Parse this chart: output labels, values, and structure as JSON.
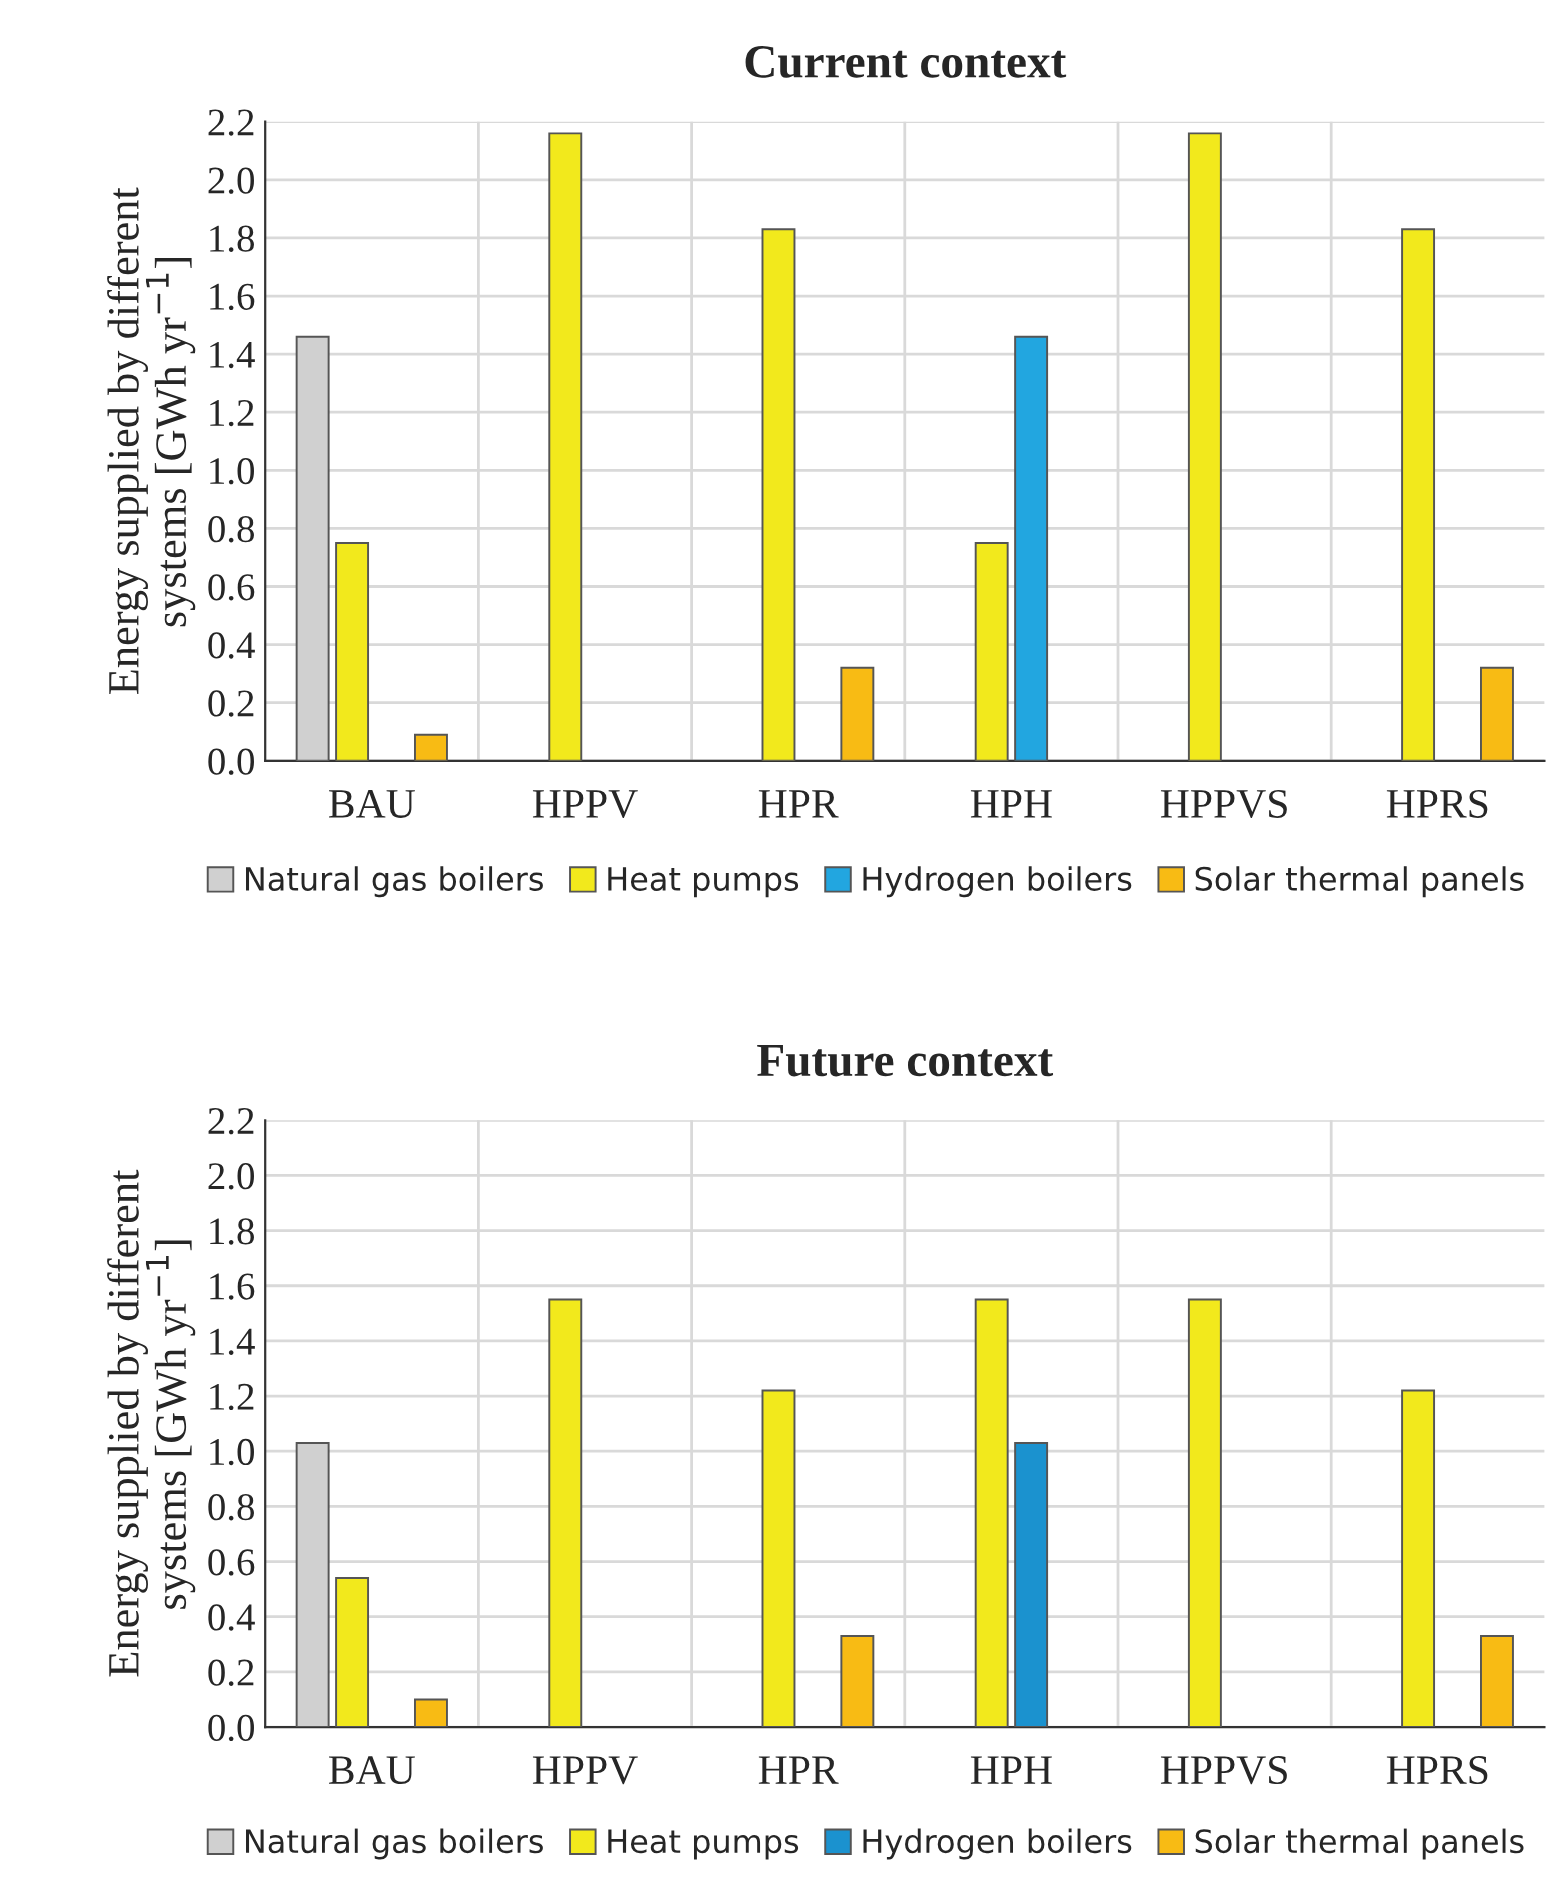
{
  "chart_data": [
    {
      "type": "bar",
      "title": "Current context",
      "ylabel": "Energy supplied by different\nsystems [GWh yr$^{−1}$]",
      "categories": [
        "BAU",
        "HPPV",
        "HPR",
        "HPH",
        "HPPVS",
        "HPRS"
      ],
      "series": [
        {
          "name": "Natural gas boilers",
          "color": "#d0d0d0",
          "values": [
            1.46,
            null,
            null,
            null,
            null,
            null
          ]
        },
        {
          "name": "Heat pumps",
          "color": "#f2e91c",
          "values": [
            0.75,
            2.16,
            1.83,
            0.75,
            2.16,
            1.83
          ]
        },
        {
          "name": "Hydrogen boilers",
          "color": "#22a6e0",
          "values": [
            null,
            null,
            null,
            1.46,
            null,
            null
          ]
        },
        {
          "name": "Solar thermal panels",
          "color": "#f8bb14",
          "values": [
            0.09,
            null,
            0.32,
            null,
            null,
            0.32
          ]
        }
      ],
      "ylim": [
        0,
        2.2
      ],
      "yticks": [
        {
          "value": 0,
          "label": "0.0"
        },
        {
          "value": 0.2,
          "label": "0.2"
        },
        {
          "value": 0.4,
          "label": "0.4"
        },
        {
          "value": 0.6,
          "label": "0.6"
        },
        {
          "value": 0.8,
          "label": "0.8"
        },
        {
          "value": 1,
          "label": "1.0"
        },
        {
          "value": 1.2,
          "label": "1.2"
        },
        {
          "value": 1.4,
          "label": "1.4"
        },
        {
          "value": 1.6,
          "label": "1.6"
        },
        {
          "value": 1.8,
          "label": "1.8"
        },
        {
          "value": 2,
          "label": "2.0"
        },
        {
          "value": 2.2,
          "label": "2.2"
        }
      ],
      "grid": true,
      "legend": "bottom"
    },
    {
      "type": "bar",
      "title": "Future context",
      "ylabel": "Energy supplied by different\nsystems [GWh yr$^{−1}$]",
      "categories": [
        "BAU",
        "HPPV",
        "HPR",
        "HPH",
        "HPPVS",
        "HPRS"
      ],
      "series": [
        {
          "name": "Natural gas boilers",
          "color": "#d0d0d0",
          "values": [
            1.03,
            null,
            null,
            null,
            null,
            null
          ]
        },
        {
          "name": "Heat pumps",
          "color": "#f2e91c",
          "values": [
            0.54,
            1.55,
            1.22,
            1.55,
            1.55,
            1.22
          ]
        },
        {
          "name": "Hydrogen boilers",
          "color": "#1b92cf",
          "values": [
            null,
            null,
            null,
            1.03,
            null,
            null
          ]
        },
        {
          "name": "Solar thermal panels",
          "color": "#f8bb14",
          "values": [
            0.1,
            null,
            0.33,
            null,
            null,
            0.33
          ]
        }
      ],
      "ylim": [
        0,
        2.2
      ],
      "yticks": [
        {
          "value": 0,
          "label": "0.0"
        },
        {
          "value": 0.2,
          "label": "0.2"
        },
        {
          "value": 0.4,
          "label": "0.4"
        },
        {
          "value": 0.6,
          "label": "0.6"
        },
        {
          "value": 0.8,
          "label": "0.8"
        },
        {
          "value": 1,
          "label": "1.0"
        },
        {
          "value": 1.2,
          "label": "1.2"
        },
        {
          "value": 1.4,
          "label": "1.4"
        },
        {
          "value": 1.6,
          "label": "1.6"
        },
        {
          "value": 1.8,
          "label": "1.8"
        },
        {
          "value": 2,
          "label": "2.0"
        },
        {
          "value": 2.2,
          "label": "2.2"
        }
      ],
      "grid": true,
      "legend": "bottom"
    }
  ]
}
